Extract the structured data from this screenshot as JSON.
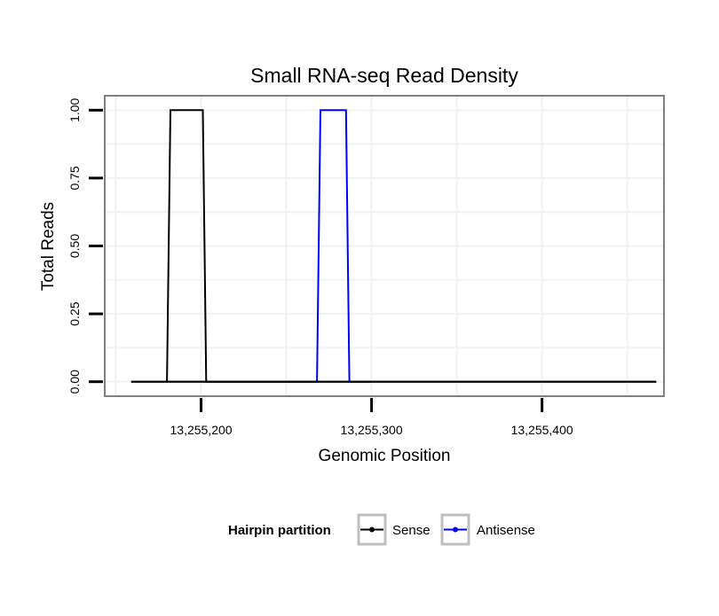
{
  "chart_data": {
    "type": "line",
    "title": "Small RNA-seq Read Density",
    "xlabel": "Genomic Position",
    "ylabel": "Total Reads",
    "xlim": [
      13255144,
      13255471
    ],
    "ylim": [
      -0.05,
      1.05
    ],
    "x_ticks": [
      {
        "value": 13255200,
        "label": "13,255,200"
      },
      {
        "value": 13255300,
        "label": "13,255,300"
      },
      {
        "value": 13255400,
        "label": "13,255,400"
      }
    ],
    "y_ticks": [
      {
        "value": 0,
        "label": "0.00"
      },
      {
        "value": 0.25,
        "label": "0.25"
      },
      {
        "value": 0.5,
        "label": "0.50"
      },
      {
        "value": 0.75,
        "label": "0.75"
      },
      {
        "value": 1.0,
        "label": "1.00"
      }
    ],
    "grid": true,
    "legend": {
      "title": "Hairpin partition",
      "position": "bottom"
    },
    "series": [
      {
        "name": "Sense",
        "color": "#000000",
        "x": [
          13255159,
          13255180,
          13255182,
          13255201,
          13255203,
          13255467
        ],
        "y": [
          0,
          0,
          1,
          1,
          0,
          0
        ]
      },
      {
        "name": "Antisense",
        "color": "#0000ff",
        "x": [
          13255180,
          13255268,
          13255270,
          13255285,
          13255287,
          13255300
        ],
        "y": [
          0,
          0,
          1,
          1,
          0,
          0
        ]
      }
    ],
    "baseline": {
      "color": "#000000",
      "x": [
        13255159,
        13255467
      ],
      "y": [
        0,
        0
      ]
    }
  }
}
